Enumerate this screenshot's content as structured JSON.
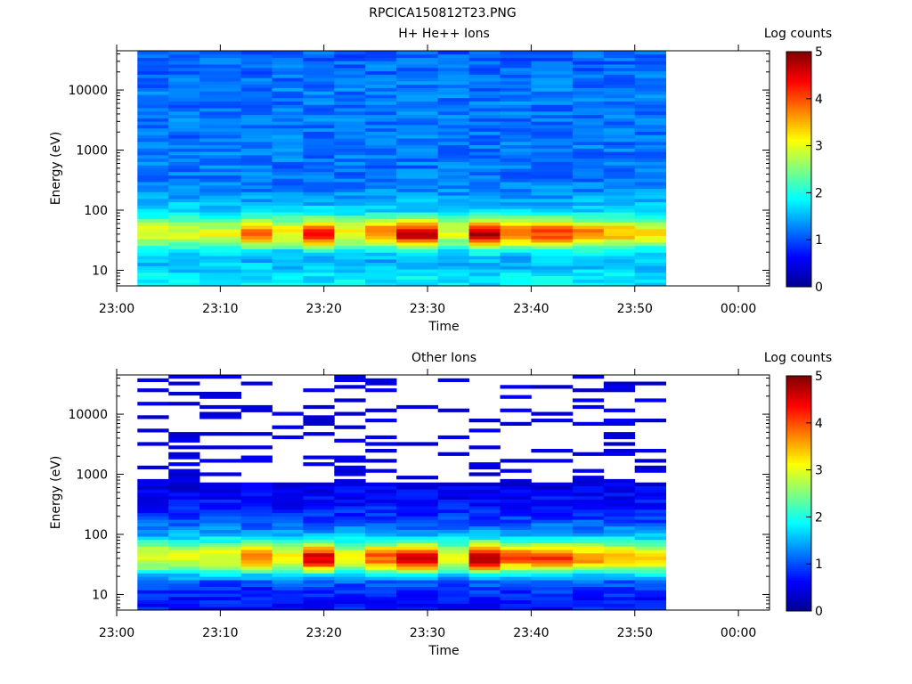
{
  "title": "RPCICA150812T23.PNG",
  "colors": {
    "background": "#ffffff",
    "axes": "#000000",
    "colormap": [
      "#00008f",
      "#0000ff",
      "#0080ff",
      "#00ffff",
      "#80ff80",
      "#ffff00",
      "#ff8000",
      "#ff0000",
      "#800000"
    ]
  },
  "chart_data": [
    {
      "type": "heatmap",
      "title": "H+ He++ Ions",
      "xlabel": "Time",
      "ylabel": "Energy (eV)",
      "colorbar": {
        "label": "Log counts",
        "range": [
          0,
          5
        ],
        "ticks": [
          "0",
          "1",
          "2",
          "3",
          "4",
          "5"
        ]
      },
      "x_ticks": [
        "23:00",
        "23:10",
        "23:20",
        "23:30",
        "23:40",
        "23:50",
        "00:00"
      ],
      "x_range_minutes": [
        0,
        63
      ],
      "y_ticks": [
        "10",
        "100",
        "1000",
        "10000"
      ],
      "y_scale": "log",
      "y_range": [
        5.5,
        45000
      ],
      "time_bins": [
        "23:02",
        "23:05",
        "23:08",
        "23:12",
        "23:15",
        "23:18",
        "23:21",
        "23:24",
        "23:27",
        "23:31",
        "23:34",
        "23:37",
        "23:40",
        "23:44",
        "23:47",
        "23:50"
      ],
      "data_end": "23:53",
      "energy_profile": [
        {
          "energy": 8,
          "log_counts": 1.8
        },
        {
          "energy": 11,
          "log_counts": 1.6
        },
        {
          "energy": 16,
          "log_counts": 1.5
        },
        {
          "energy": 22,
          "log_counts": 1.9
        },
        {
          "energy": 28,
          "log_counts": 2.6
        },
        {
          "energy": 35,
          "log_counts": 3.2
        },
        {
          "energy": 45,
          "log_counts": 3.4
        },
        {
          "energy": 55,
          "log_counts": 3.0
        },
        {
          "energy": 70,
          "log_counts": 2.3
        },
        {
          "energy": 100,
          "log_counts": 1.7
        },
        {
          "energy": 160,
          "log_counts": 1.4
        },
        {
          "energy": 300,
          "log_counts": 1.2
        },
        {
          "energy": 1000,
          "log_counts": 1.2
        },
        {
          "energy": 3000,
          "log_counts": 1.2
        },
        {
          "energy": 10000,
          "log_counts": 1.2
        },
        {
          "energy": 40000,
          "log_counts": 1.1
        }
      ],
      "column_peak_log_counts": [
        3.1,
        3.0,
        3.1,
        3.8,
        3.2,
        4.6,
        3.1,
        3.9,
        4.7,
        3.0,
        4.9,
        4.1,
        4.2,
        3.7,
        3.5,
        3.3
      ]
    },
    {
      "type": "heatmap",
      "title": "Other Ions",
      "xlabel": "Time",
      "ylabel": "Energy (eV)",
      "colorbar": {
        "label": "Log counts",
        "range": [
          0,
          5
        ],
        "ticks": [
          "0",
          "1",
          "2",
          "3",
          "4",
          "5"
        ]
      },
      "x_ticks": [
        "23:00",
        "23:10",
        "23:20",
        "23:30",
        "23:40",
        "23:50",
        "00:00"
      ],
      "x_range_minutes": [
        0,
        63
      ],
      "y_ticks": [
        "10",
        "100",
        "1000",
        "10000"
      ],
      "y_scale": "log",
      "y_range": [
        5.5,
        45000
      ],
      "time_bins": [
        "23:02",
        "23:05",
        "23:08",
        "23:12",
        "23:15",
        "23:18",
        "23:21",
        "23:24",
        "23:27",
        "23:31",
        "23:34",
        "23:37",
        "23:40",
        "23:44",
        "23:47",
        "23:50"
      ],
      "data_end": "23:53",
      "energy_profile": [
        {
          "energy": 8,
          "log_counts": 0.7
        },
        {
          "energy": 11,
          "log_counts": 0.8
        },
        {
          "energy": 16,
          "log_counts": 1.0
        },
        {
          "energy": 22,
          "log_counts": 1.8
        },
        {
          "energy": 28,
          "log_counts": 2.6
        },
        {
          "energy": 35,
          "log_counts": 3.2
        },
        {
          "energy": 45,
          "log_counts": 3.4
        },
        {
          "energy": 55,
          "log_counts": 3.0
        },
        {
          "energy": 70,
          "log_counts": 2.3
        },
        {
          "energy": 100,
          "log_counts": 1.5
        },
        {
          "energy": 160,
          "log_counts": 1.0
        },
        {
          "energy": 300,
          "log_counts": 0.7
        },
        {
          "energy": 650,
          "log_counts": 0.5
        }
      ],
      "sparse_above_energy": 700,
      "sparse_log_counts": 0.3,
      "column_peak_log_counts": [
        3.1,
        3.0,
        3.1,
        3.8,
        3.2,
        4.6,
        3.1,
        3.9,
        4.7,
        3.0,
        4.9,
        4.1,
        4.2,
        3.7,
        3.5,
        3.3
      ]
    }
  ]
}
